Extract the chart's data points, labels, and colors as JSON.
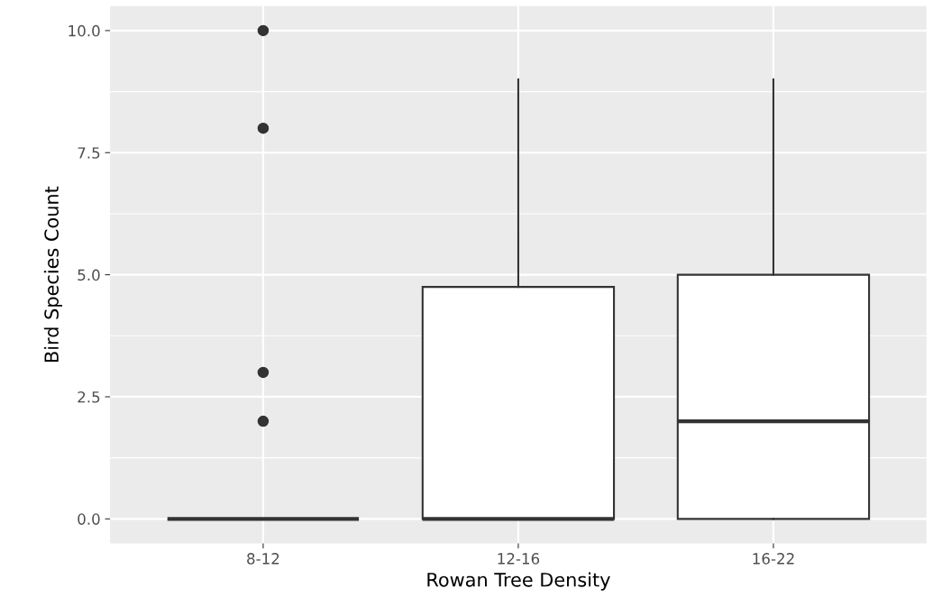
{
  "chart_data": {
    "type": "box",
    "xlabel": "Rowan Tree Density",
    "ylabel": "Bird Species Count",
    "categories": [
      "8-12",
      "12-16",
      "16-22"
    ],
    "boxes": [
      {
        "low": 0,
        "q1": 0,
        "median": 0,
        "q3": 0,
        "high": 0,
        "outliers": [
          2,
          3,
          8,
          10
        ]
      },
      {
        "low": 0,
        "q1": 0,
        "median": 0,
        "q3": 4.75,
        "high": 9
      },
      {
        "low": 0,
        "q1": 0,
        "median": 2,
        "q3": 5,
        "high": 9
      }
    ],
    "color": "#333333",
    "ylim": [
      -0.5,
      10.5
    ],
    "yticks": [
      {
        "value": 0,
        "label": "0.0"
      },
      {
        "value": 2.5,
        "label": "2.5"
      },
      {
        "value": 5,
        "label": "5.0"
      },
      {
        "value": 7.5,
        "label": "7.5"
      },
      {
        "value": 10,
        "label": "10.0"
      }
    ],
    "grid": true
  }
}
